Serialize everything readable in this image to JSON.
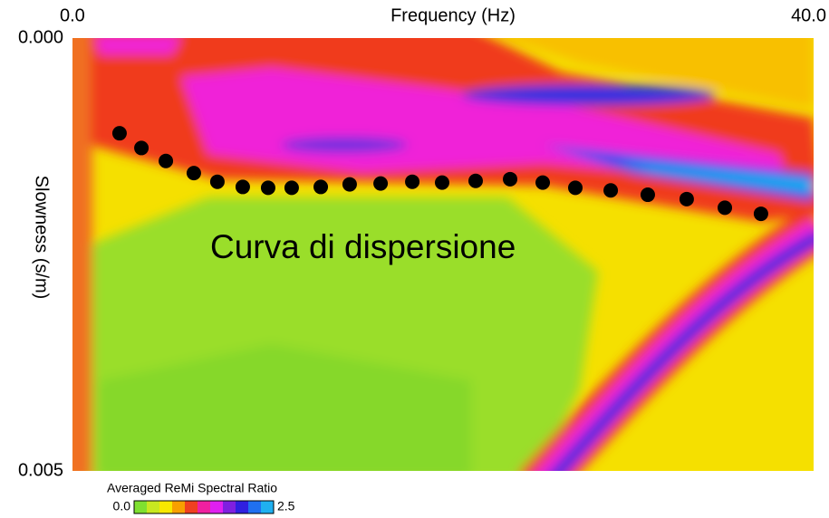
{
  "chart_data": {
    "type": "scatter",
    "title": "Frequency (Hz)",
    "y_label": "Slowness (s/m)",
    "annotation": "Curva di dispersione",
    "x": [
      2.54,
      3.72,
      5.04,
      6.55,
      7.82,
      9.19,
      10.56,
      11.83,
      13.4,
      14.96,
      16.63,
      18.34,
      19.95,
      21.76,
      23.62,
      25.38,
      27.14,
      29.05,
      31.05,
      33.15,
      35.21,
      37.16
    ],
    "values": [
      0.0011,
      0.00127,
      0.00142,
      0.00156,
      0.00166,
      0.00172,
      0.00173,
      0.00173,
      0.00172,
      0.00169,
      0.00168,
      0.00166,
      0.00167,
      0.00165,
      0.00163,
      0.00167,
      0.00173,
      0.00176,
      0.00181,
      0.00186,
      0.00196,
      0.00203
    ],
    "color": "#000000",
    "xlim": [
      0,
      40
    ],
    "xticks": [
      {
        "value": 0,
        "label": "0.0"
      },
      {
        "value": 40,
        "label": "40.0"
      }
    ],
    "ylim": [
      0,
      0.005
    ],
    "yticks": [
      {
        "value": 0,
        "label": "0.000"
      },
      {
        "value": 0.005,
        "label": "0.005"
      }
    ],
    "colorbar": {
      "label": "Averaged ReMi Spectral Ratio",
      "lim": [
        0,
        2.5
      ],
      "ticks": [
        {
          "value": 0,
          "label": "0.0"
        },
        {
          "value": 2.5,
          "label": "2.5"
        }
      ],
      "colors": [
        "#7fe030",
        "#c8e820",
        "#f8e800",
        "#f8a000",
        "#f04020",
        "#f020a0",
        "#e020f0",
        "#8020e0",
        "#3020e0",
        "#2070f0",
        "#20b0f0"
      ]
    }
  }
}
